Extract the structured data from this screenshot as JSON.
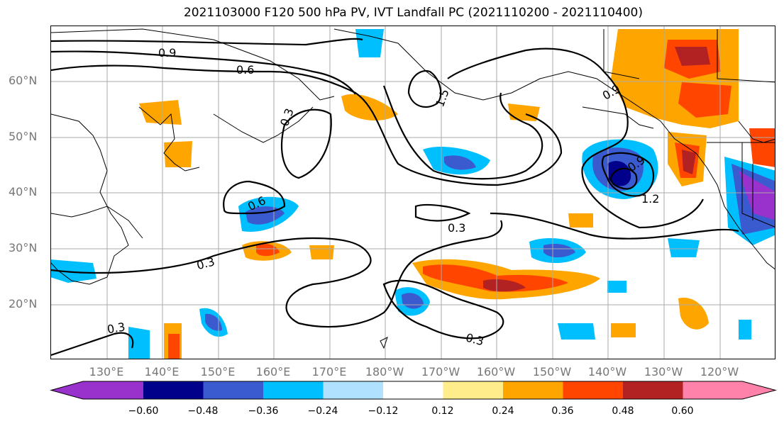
{
  "title": "2021103000 F120 500 hPa PV, IVT Landfall PC (2021110200 - 2021110400)",
  "lat_labels": [
    "60°N",
    "50°N",
    "40°N",
    "30°N",
    "20°N"
  ],
  "lon_labels": [
    "130°E",
    "140°E",
    "150°E",
    "160°E",
    "170°E",
    "180°W",
    "170°W",
    "160°W",
    "150°W",
    "140°W",
    "130°W",
    "120°W"
  ],
  "contour_labels": [
    "0.9",
    "0.6",
    "0.3",
    "0.6",
    "0.3",
    "0.3",
    "0.3",
    "1.5",
    "0.9",
    "1.2",
    "0.3",
    "0.9"
  ],
  "colorbar": {
    "colors": [
      "#9932cc",
      "#00008b",
      "#3a5bd0",
      "#00bfff",
      "#b0e2ff",
      "#ffffff",
      "#ffec8b",
      "#ffa500",
      "#ff4500",
      "#b22222",
      "#ff82ab"
    ],
    "tick_labels": [
      "−0.60",
      "−0.48",
      "−0.36",
      "−0.24",
      "−0.12",
      "0.12",
      "0.24",
      "0.36",
      "0.48",
      "0.60"
    ]
  }
}
